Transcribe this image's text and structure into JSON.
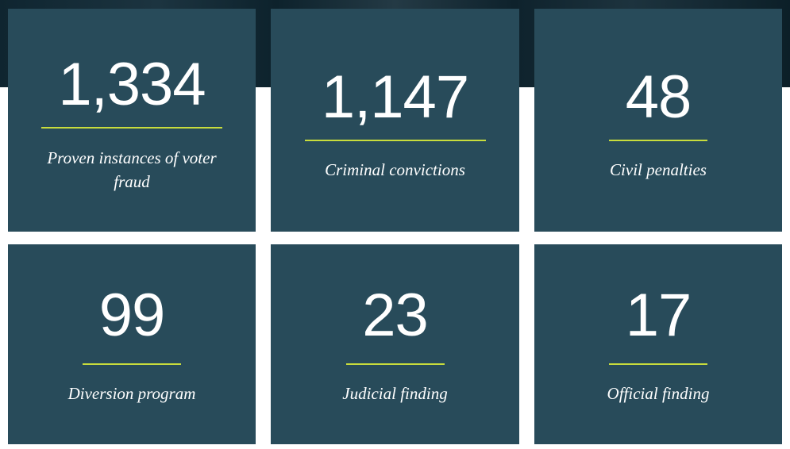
{
  "stats": [
    {
      "value": "1,334",
      "label": "Proven instances of voter fraud"
    },
    {
      "value": "1,147",
      "label": "Criminal convictions"
    },
    {
      "value": "48",
      "label": "Civil penalties"
    },
    {
      "value": "99",
      "label": "Diversion program"
    },
    {
      "value": "23",
      "label": "Judicial finding"
    },
    {
      "value": "17",
      "label": "Official finding"
    }
  ],
  "colors": {
    "card": "#284b5a",
    "accent": "#c8dc3c",
    "text": "#ffffff"
  }
}
